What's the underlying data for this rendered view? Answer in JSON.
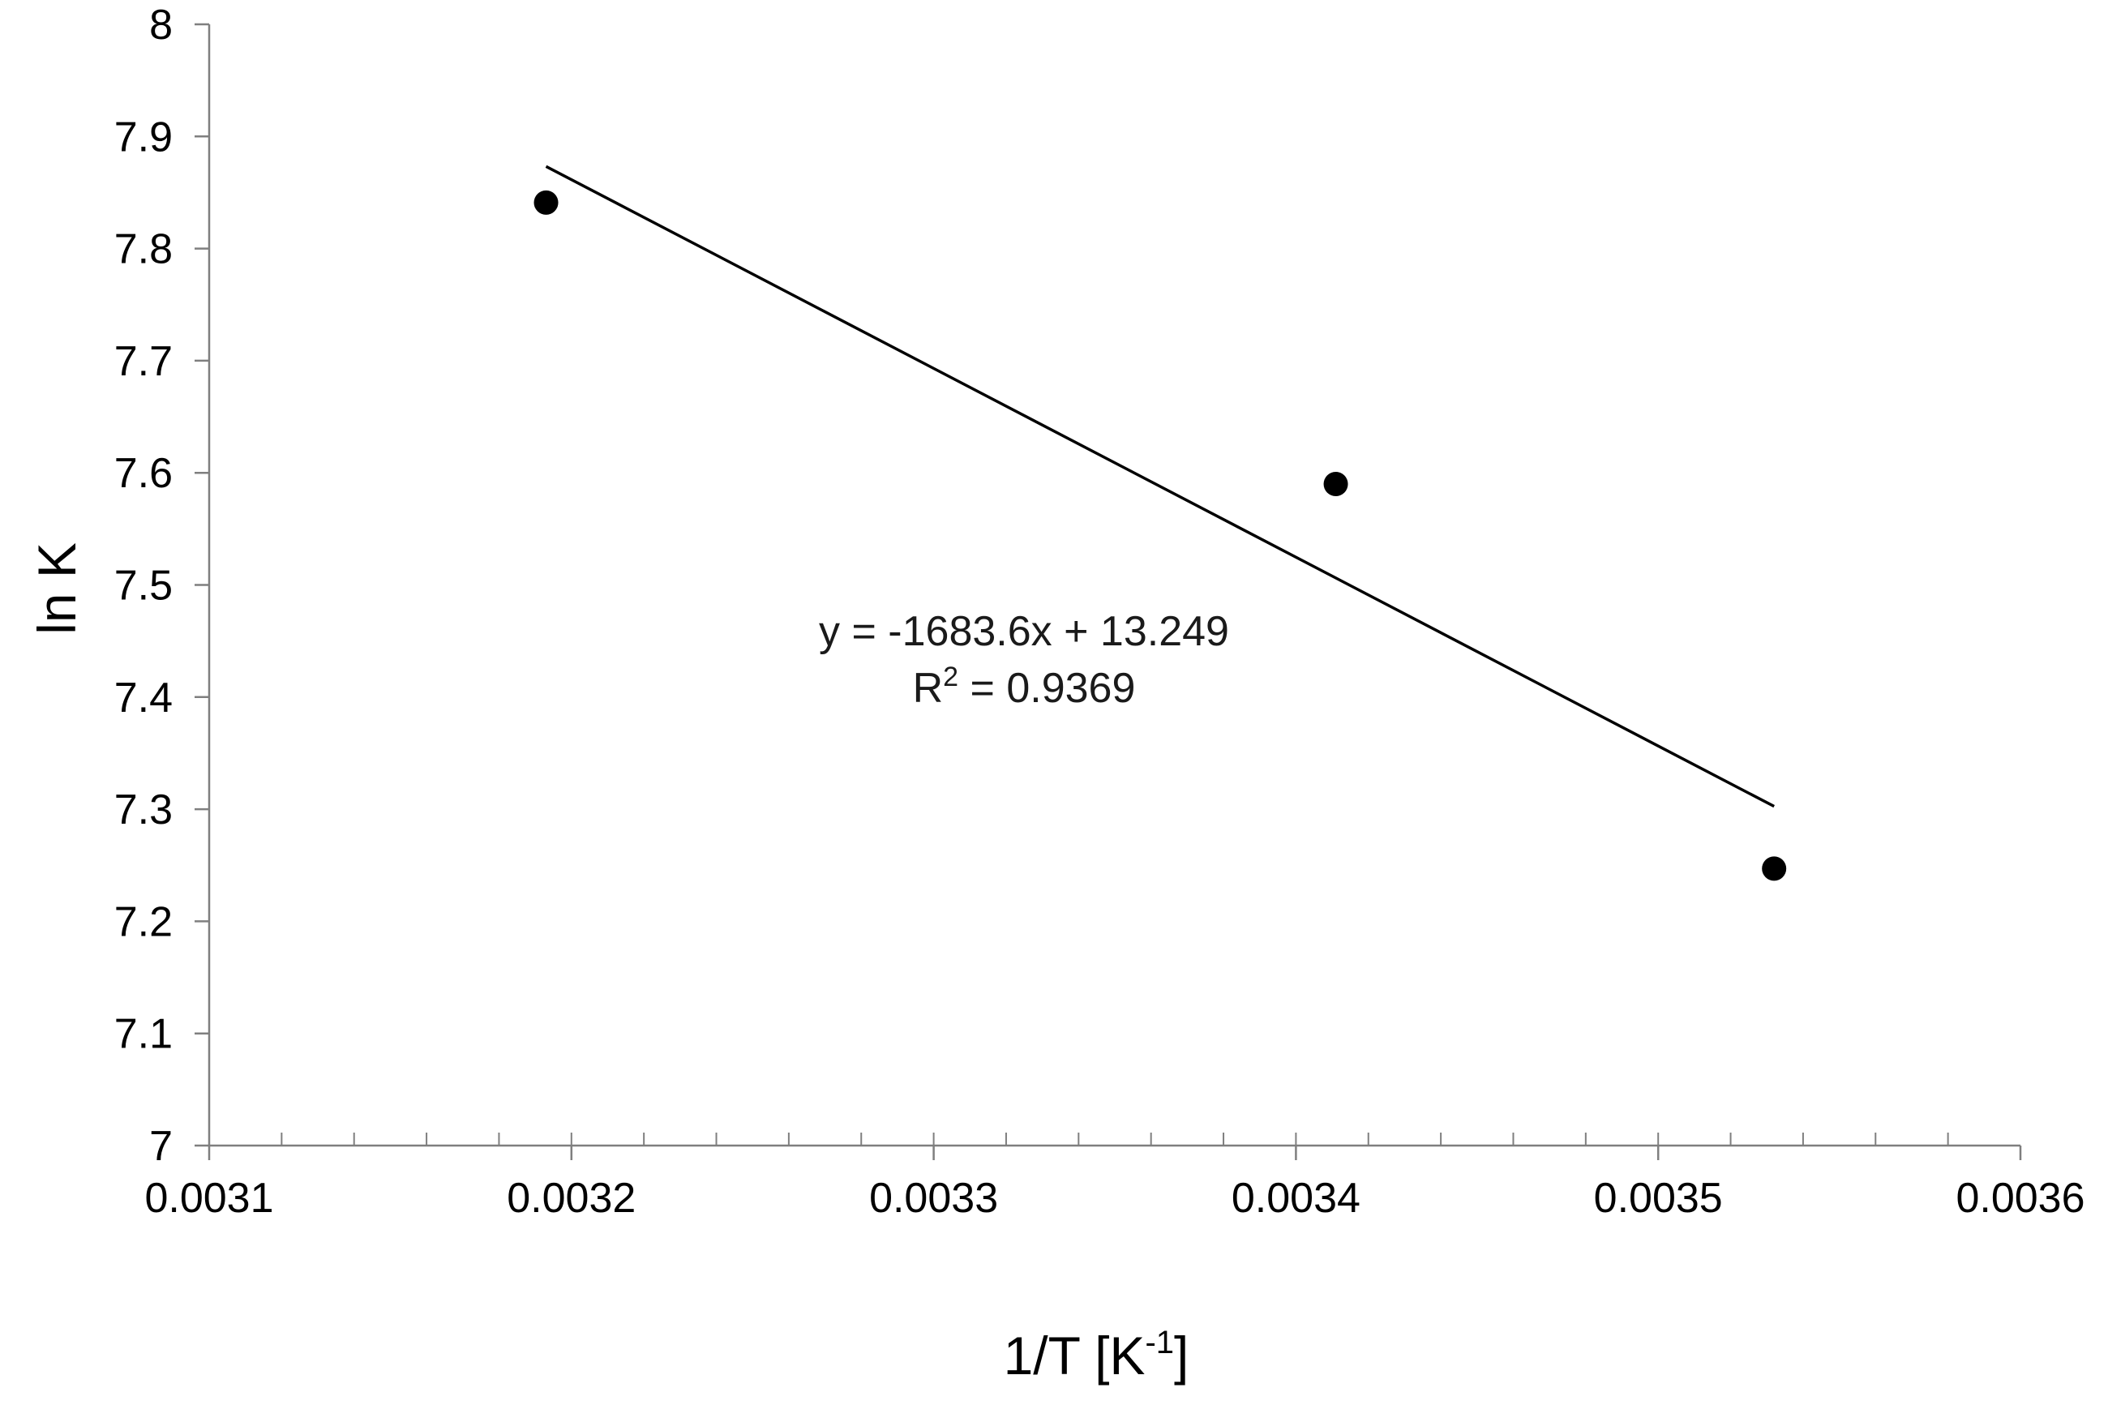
{
  "chart_data": {
    "type": "scatter",
    "title": "",
    "xlabel": "1/T  [K",
    "xlabel_superscript": "-1",
    "xlabel_suffix": "]",
    "ylabel": "ln K",
    "xlim": [
      0.0031,
      0.0036
    ],
    "ylim": [
      7,
      8
    ],
    "grid": false,
    "x_ticks": [
      "0.0031",
      "0.0032",
      "0.0033",
      "0.0034",
      "0.0035",
      "0.0036"
    ],
    "y_ticks": [
      "7",
      "7.1",
      "7.2",
      "7.3",
      "7.4",
      "7.5",
      "7.6",
      "7.7",
      "7.8",
      "7.9",
      "8"
    ],
    "x_ticks_numeric": [
      0.0031,
      0.0032,
      0.0033,
      0.0034,
      0.0035,
      0.0036
    ],
    "y_ticks_numeric": [
      7,
      7.1,
      7.2,
      7.3,
      7.4,
      7.5,
      7.6,
      7.7,
      7.8,
      7.9,
      8
    ],
    "x_minor_ticks": [
      0.00312,
      0.00314,
      0.00316,
      0.00318,
      0.0032,
      0.00322,
      0.00324,
      0.00326,
      0.00328,
      0.0033,
      0.00332,
      0.00334,
      0.00336,
      0.00338,
      0.0034,
      0.00342,
      0.00344,
      0.00346,
      0.00348,
      0.0035,
      0.00352,
      0.00354,
      0.00356,
      0.00358
    ],
    "series": [
      {
        "x": [
          0.003193,
          0.003411,
          0.003532
        ],
        "y": [
          7.841,
          7.59,
          7.247
        ],
        "color": "#000000"
      }
    ],
    "trendline": {
      "slope": -1683.6,
      "intercept": 13.249,
      "x_range": [
        0.003193,
        0.003532
      ],
      "color": "#000000"
    },
    "annotations": {
      "equation": "y = -1683.6x + 13.249",
      "r_squared_prefix": "R",
      "r_squared_superscript": "2",
      "r_squared_value": " = 0.9369"
    }
  }
}
